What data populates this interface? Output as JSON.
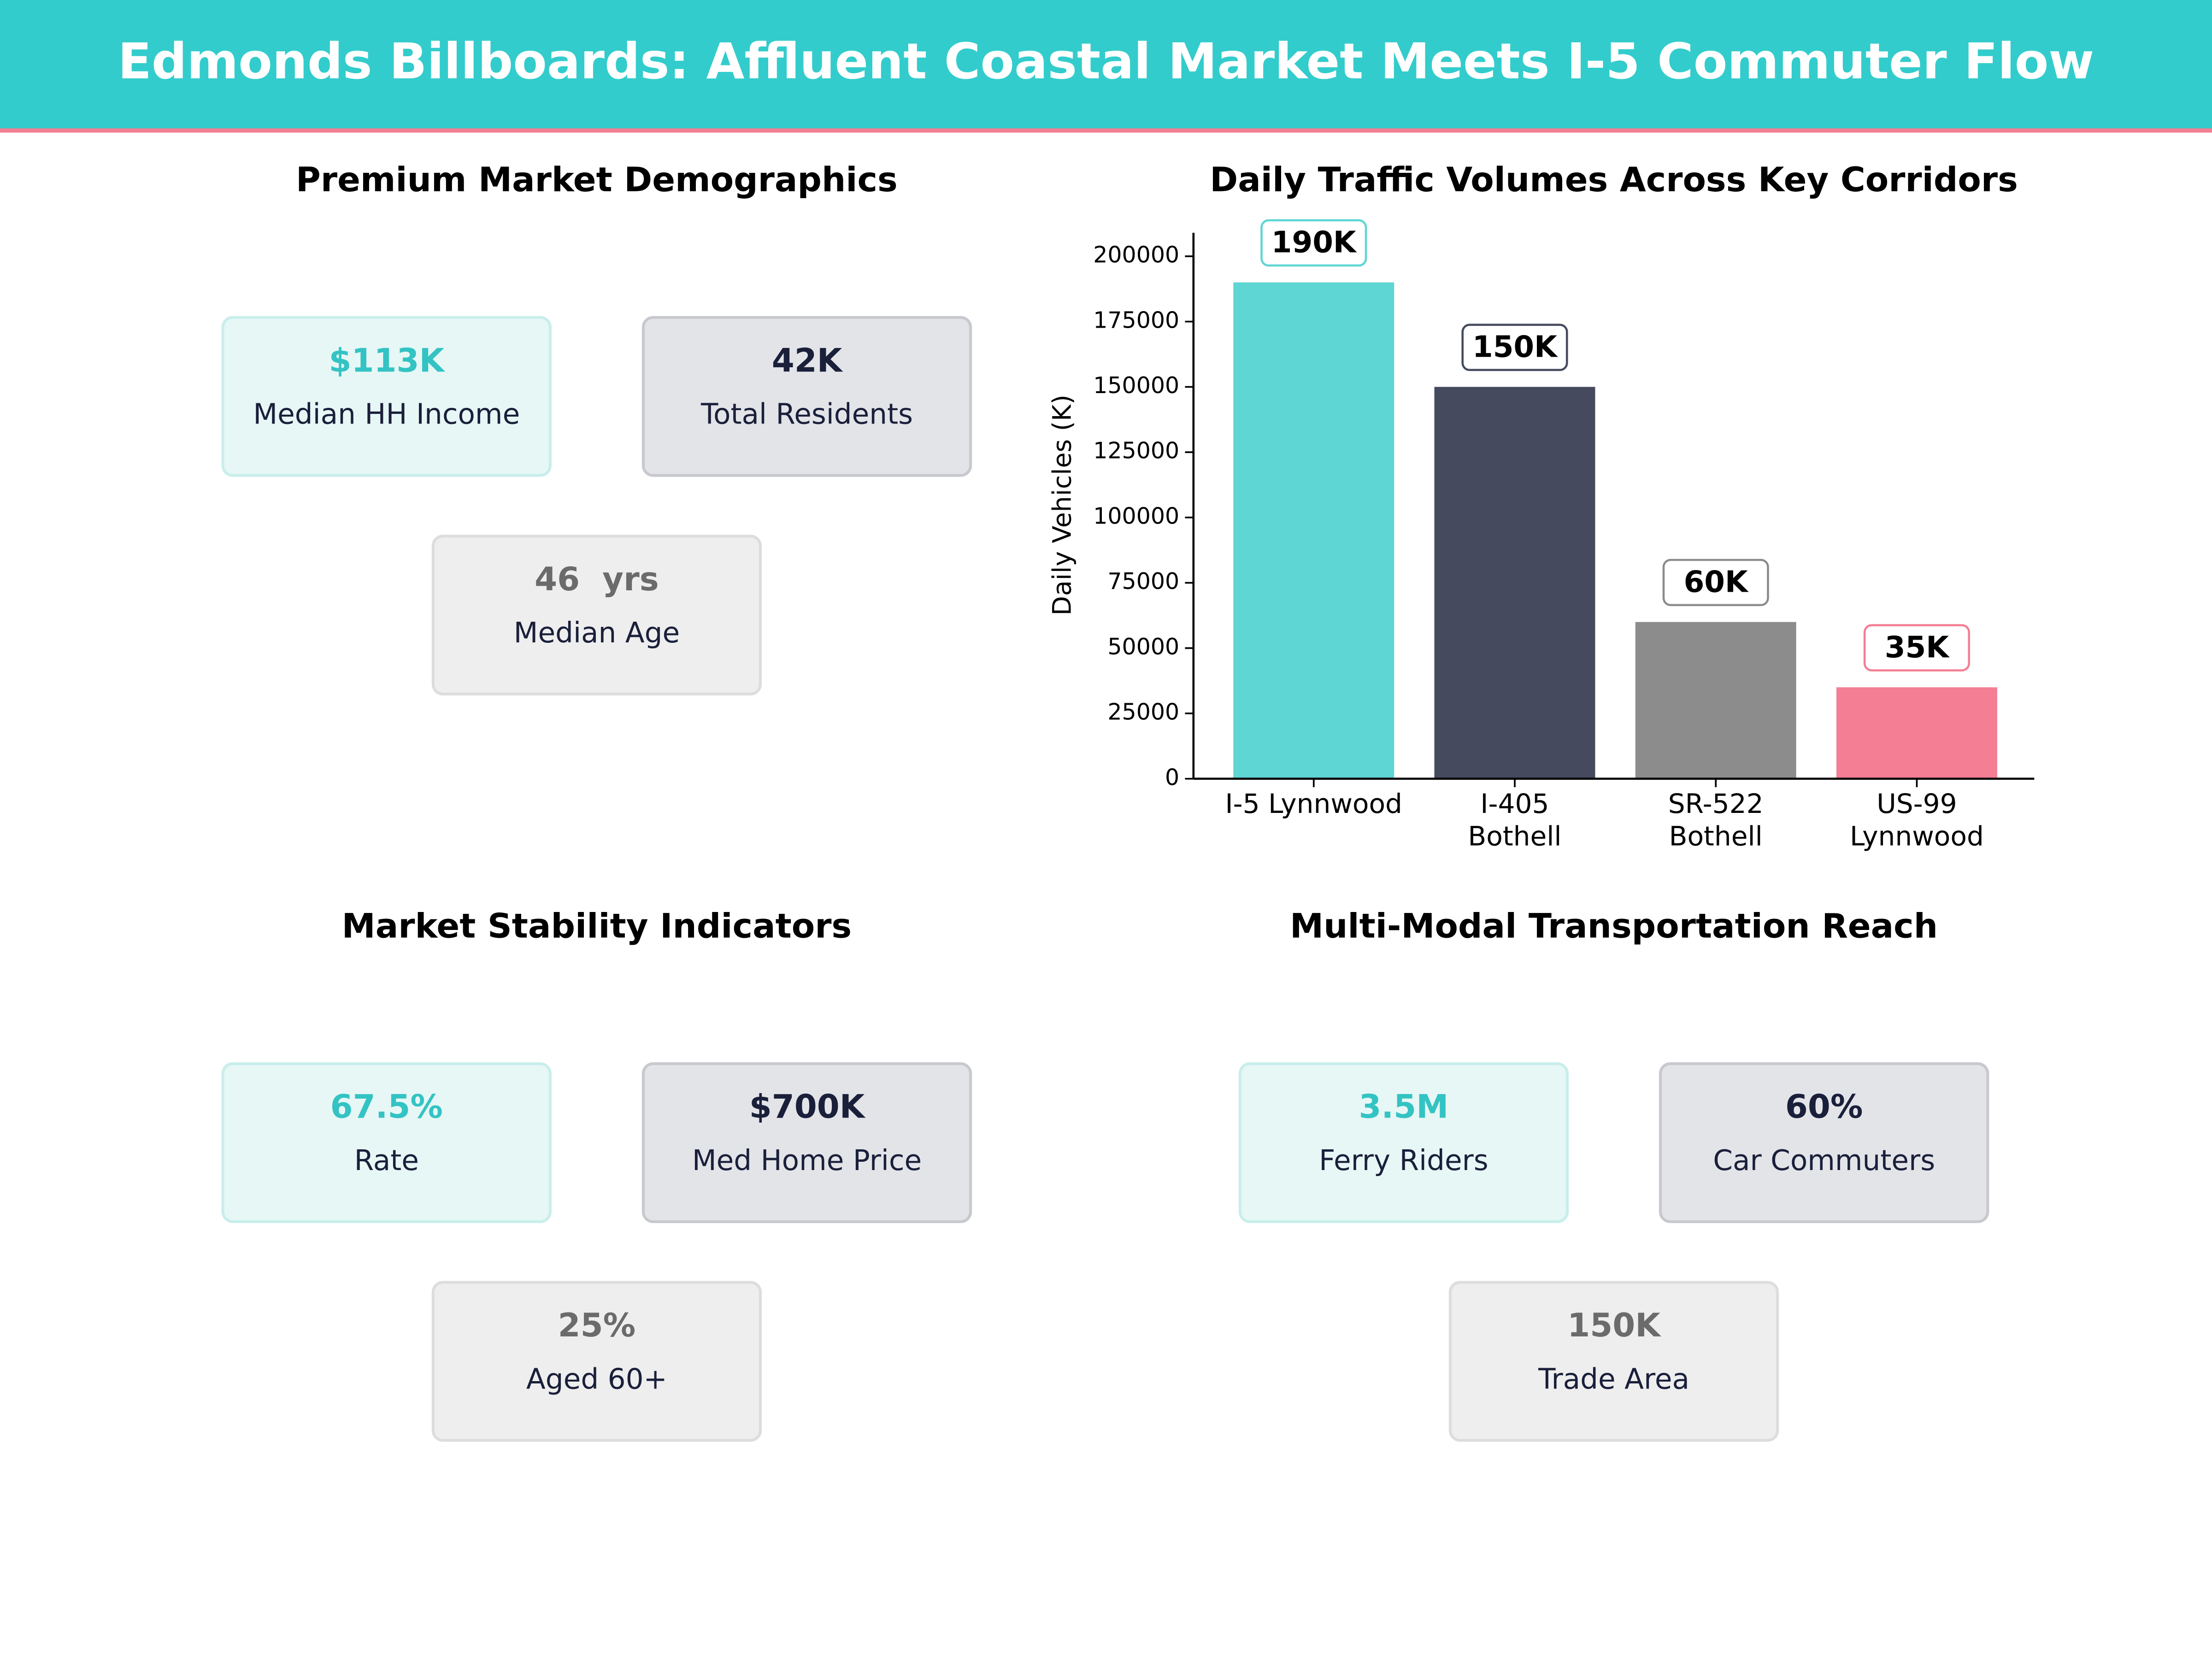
{
  "title": "Edmonds Billboards: Affluent Coastal Market Meets I-5 Commuter Flow",
  "chart_data": {
    "type": "bar",
    "title": "Daily Traffic Volumes Across Key Corridors",
    "y_label": "Daily Vehicles (K)",
    "categories": [
      "I-5 Lynnwood",
      "I-405\nBothell",
      "SR-522\nBothell",
      "US-99\nLynnwood"
    ],
    "values": [
      190000,
      150000,
      60000,
      35000
    ],
    "value_labels": [
      "190K",
      "150K",
      "60K",
      "35K"
    ],
    "colors": [
      "#5dd6d4",
      "#454a5f",
      "#8c8c8c",
      "#f47e93"
    ],
    "ylim": [
      0,
      209000
    ],
    "yticks": [
      0,
      25000,
      50000,
      75000,
      100000,
      125000,
      150000,
      175000,
      200000
    ],
    "grid": false
  },
  "kpi_panels": [
    {
      "title": "Premium Market Demographics",
      "cards": [
        {
          "value": "$113K",
          "label": "Median HH Income"
        },
        {
          "value": "42K",
          "label": "Total Residents"
        },
        {
          "value": "46  yrs",
          "label": "Median Age"
        }
      ]
    },
    {
      "title": "Market Stability Indicators",
      "cards": [
        {
          "value": "67.5%",
          "label": "Rate"
        },
        {
          "value": "$700K",
          "label": "Med Home Price"
        },
        {
          "value": "25%",
          "label": "Aged 60+"
        }
      ]
    },
    {
      "title": "Multi-Modal Transportation Reach",
      "cards": [
        {
          "value": "3.5M",
          "label": "Ferry Riders"
        },
        {
          "value": "60%",
          "label": "Car Commuters"
        },
        {
          "value": "150K",
          "label": "Trade Area"
        }
      ]
    }
  ]
}
